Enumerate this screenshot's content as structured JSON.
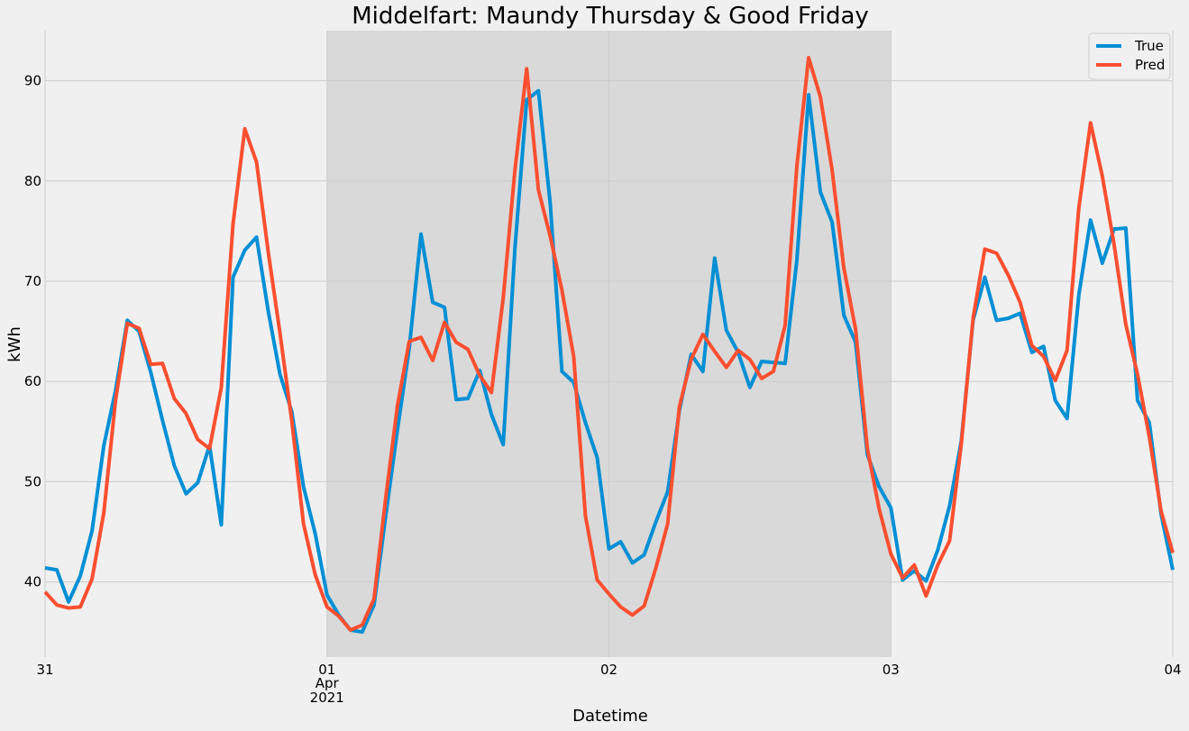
{
  "chart_data": {
    "type": "line",
    "title": "Middelfart: Maundy Thursday & Good Friday",
    "xlabel": "Datetime",
    "ylabel": "kWh",
    "x_ticks": [
      {
        "label": "31",
        "sub": [
          "",
          ""
        ]
      },
      {
        "label": "01",
        "sub": [
          "Apr",
          "2021"
        ]
      },
      {
        "label": "02",
        "sub": [
          "",
          ""
        ]
      },
      {
        "label": "03",
        "sub": [
          "",
          ""
        ]
      },
      {
        "label": "04",
        "sub": [
          "",
          ""
        ]
      }
    ],
    "y_ticks": [
      "40",
      "50",
      "60",
      "70",
      "80",
      "90"
    ],
    "y_tick_values": [
      40,
      50,
      60,
      70,
      80,
      90
    ],
    "xlim": [
      "2021-03-31 00:00",
      "2021-04-04 00:00"
    ],
    "ylim": [
      32.5,
      95
    ],
    "highlight_span": [
      "2021-04-01 00:00",
      "2021-04-03 00:00"
    ],
    "grid": true,
    "legend_position": "top-right",
    "x": [
      "2021-03-31 00:00",
      "2021-03-31 01:00",
      "2021-03-31 02:00",
      "2021-03-31 03:00",
      "2021-03-31 04:00",
      "2021-03-31 05:00",
      "2021-03-31 06:00",
      "2021-03-31 07:00",
      "2021-03-31 08:00",
      "2021-03-31 09:00",
      "2021-03-31 10:00",
      "2021-03-31 11:00",
      "2021-03-31 12:00",
      "2021-03-31 13:00",
      "2021-03-31 14:00",
      "2021-03-31 15:00",
      "2021-03-31 16:00",
      "2021-03-31 17:00",
      "2021-03-31 18:00",
      "2021-03-31 19:00",
      "2021-03-31 20:00",
      "2021-03-31 21:00",
      "2021-03-31 22:00",
      "2021-03-31 23:00",
      "2021-04-01 00:00",
      "2021-04-01 01:00",
      "2021-04-01 02:00",
      "2021-04-01 03:00",
      "2021-04-01 04:00",
      "2021-04-01 05:00",
      "2021-04-01 06:00",
      "2021-04-01 07:00",
      "2021-04-01 08:00",
      "2021-04-01 09:00",
      "2021-04-01 10:00",
      "2021-04-01 11:00",
      "2021-04-01 12:00",
      "2021-04-01 13:00",
      "2021-04-01 14:00",
      "2021-04-01 15:00",
      "2021-04-01 16:00",
      "2021-04-01 17:00",
      "2021-04-01 18:00",
      "2021-04-01 19:00",
      "2021-04-01 20:00",
      "2021-04-01 21:00",
      "2021-04-01 22:00",
      "2021-04-01 23:00",
      "2021-04-02 00:00",
      "2021-04-02 01:00",
      "2021-04-02 02:00",
      "2021-04-02 03:00",
      "2021-04-02 04:00",
      "2021-04-02 05:00",
      "2021-04-02 06:00",
      "2021-04-02 07:00",
      "2021-04-02 08:00",
      "2021-04-02 09:00",
      "2021-04-02 10:00",
      "2021-04-02 11:00",
      "2021-04-02 12:00",
      "2021-04-02 13:00",
      "2021-04-02 14:00",
      "2021-04-02 15:00",
      "2021-04-02 16:00",
      "2021-04-02 17:00",
      "2021-04-02 18:00",
      "2021-04-02 19:00",
      "2021-04-02 20:00",
      "2021-04-02 21:00",
      "2021-04-02 22:00",
      "2021-04-02 23:00",
      "2021-04-03 00:00",
      "2021-04-03 01:00",
      "2021-04-03 02:00",
      "2021-04-03 03:00",
      "2021-04-03 04:00",
      "2021-04-03 05:00",
      "2021-04-03 06:00",
      "2021-04-03 07:00",
      "2021-04-03 08:00",
      "2021-04-03 09:00",
      "2021-04-03 10:00",
      "2021-04-03 11:00",
      "2021-04-03 12:00",
      "2021-04-03 13:00",
      "2021-04-03 14:00",
      "2021-04-03 15:00",
      "2021-04-03 16:00",
      "2021-04-03 17:00",
      "2021-04-03 18:00",
      "2021-04-03 19:00",
      "2021-04-03 20:00",
      "2021-04-03 21:00",
      "2021-04-03 22:00",
      "2021-04-03 23:00",
      "2021-04-04 00:00"
    ],
    "series": [
      {
        "name": "True",
        "color": "#008fd5",
        "values": [
          41.4,
          41.2,
          38.0,
          40.6,
          45.1,
          53.6,
          59.1,
          66.1,
          65.0,
          60.9,
          56.1,
          51.6,
          48.8,
          49.9,
          53.6,
          45.7,
          70.4,
          73.1,
          74.4,
          67.0,
          60.7,
          57.0,
          49.5,
          44.8,
          38.7,
          36.7,
          35.2,
          35.0,
          37.7,
          46.6,
          55.2,
          63.3,
          74.7,
          67.9,
          67.4,
          58.2,
          58.3,
          61.1,
          56.7,
          53.7,
          73.3,
          88.1,
          89.0,
          77.8,
          61.0,
          59.9,
          55.9,
          52.4,
          43.3,
          44.0,
          41.9,
          42.7,
          46.0,
          49.0,
          57.1,
          62.7,
          61.0,
          72.3,
          65.1,
          62.9,
          59.4,
          62.0,
          61.9,
          61.8,
          72.1,
          88.6,
          78.9,
          75.9,
          66.6,
          63.9,
          52.7,
          49.5,
          47.4,
          40.2,
          41.1,
          40.1,
          43.2,
          47.6,
          54.1,
          66.1,
          70.4,
          66.1,
          66.3,
          66.8,
          62.9,
          63.5,
          58.1,
          56.3,
          68.6,
          76.1,
          71.8,
          75.2,
          75.3,
          58.1,
          55.9,
          46.8,
          41.2
        ]
      },
      {
        "name": "Pred",
        "color": "#fc4f30",
        "values": [
          39.0,
          37.7,
          37.4,
          37.5,
          40.3,
          46.9,
          58.1,
          65.8,
          65.3,
          61.7,
          61.8,
          58.3,
          56.8,
          54.2,
          53.3,
          59.4,
          75.7,
          85.2,
          81.9,
          72.9,
          64.8,
          56.1,
          45.8,
          40.7,
          37.5,
          36.6,
          35.2,
          35.7,
          38.3,
          48.4,
          57.6,
          64.0,
          64.4,
          62.1,
          65.9,
          63.9,
          63.2,
          60.6,
          58.9,
          68.3,
          81.1,
          91.2,
          79.1,
          74.5,
          69.1,
          62.5,
          46.6,
          40.2,
          38.8,
          37.5,
          36.7,
          37.6,
          41.4,
          45.8,
          57.5,
          62.2,
          64.7,
          63.0,
          61.4,
          63.1,
          62.2,
          60.3,
          61.0,
          65.6,
          81.5,
          92.3,
          88.4,
          81.1,
          71.3,
          65.2,
          53.3,
          47.3,
          42.8,
          40.4,
          41.7,
          38.6,
          41.7,
          44.1,
          53.8,
          66.3,
          73.2,
          72.8,
          70.6,
          67.9,
          63.6,
          62.5,
          60.1,
          63.1,
          77.3,
          85.8,
          80.5,
          73.7,
          65.7,
          60.7,
          54.5,
          47.1,
          42.9
        ]
      }
    ]
  }
}
